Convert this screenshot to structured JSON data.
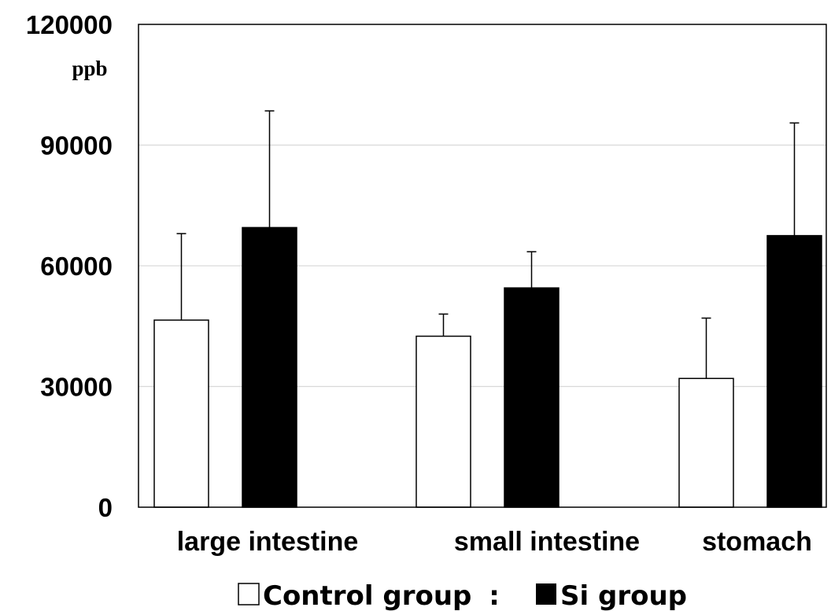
{
  "chart_data": {
    "type": "bar",
    "ylabel": "ppb",
    "ylim": [
      0,
      120000
    ],
    "yticks": [
      0,
      30000,
      60000,
      90000,
      120000
    ],
    "ytick_labels": [
      "0",
      "30000",
      "60000",
      "90000",
      "120000"
    ],
    "grid": true,
    "categories": [
      "large intestine",
      "small intestine",
      "stomach"
    ],
    "series": [
      {
        "name": "Control group",
        "fill": "#ffffff",
        "values": [
          46500,
          42500,
          32000
        ],
        "errors": [
          21500,
          5500,
          15000
        ]
      },
      {
        "name": "Si group",
        "fill": "#000000",
        "values": [
          69500,
          54500,
          67500
        ],
        "errors": [
          29000,
          9000,
          28000
        ]
      }
    ],
    "legend": {
      "placement": "bottom",
      "separator": ":"
    }
  }
}
